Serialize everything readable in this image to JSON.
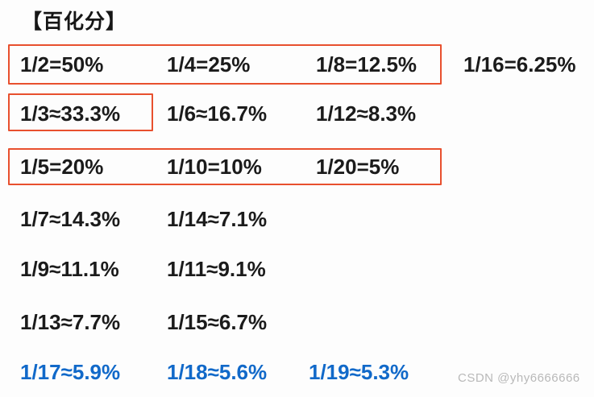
{
  "title": "【百化分】",
  "watermark": "CSDN @yhy6666666",
  "colors": {
    "highlight_box_red": "#e8502e",
    "final_row_blue": "#1169c9",
    "text_black": "#1b1b1b",
    "watermark_gray": "#b9b9b9",
    "background": "#fdfdfd"
  },
  "rows": [
    [
      "1/2=50%",
      "1/4=25%",
      "1/8=12.5%",
      "1/16=6.25%"
    ],
    [
      "1/3≈33.3%",
      "1/6≈16.7%",
      "1/12≈8.3%"
    ],
    [
      "1/5=20%",
      "1/10=10%",
      "1/20=5%"
    ],
    [
      "1/7≈14.3%",
      "1/14≈7.1%"
    ],
    [
      "1/9≈11.1%",
      "1/11≈9.1%"
    ],
    [
      "1/13≈7.7%",
      "1/15≈6.7%"
    ],
    [
      "1/17≈5.9%",
      "1/18≈5.6%",
      "1/19≈5.3%"
    ]
  ]
}
